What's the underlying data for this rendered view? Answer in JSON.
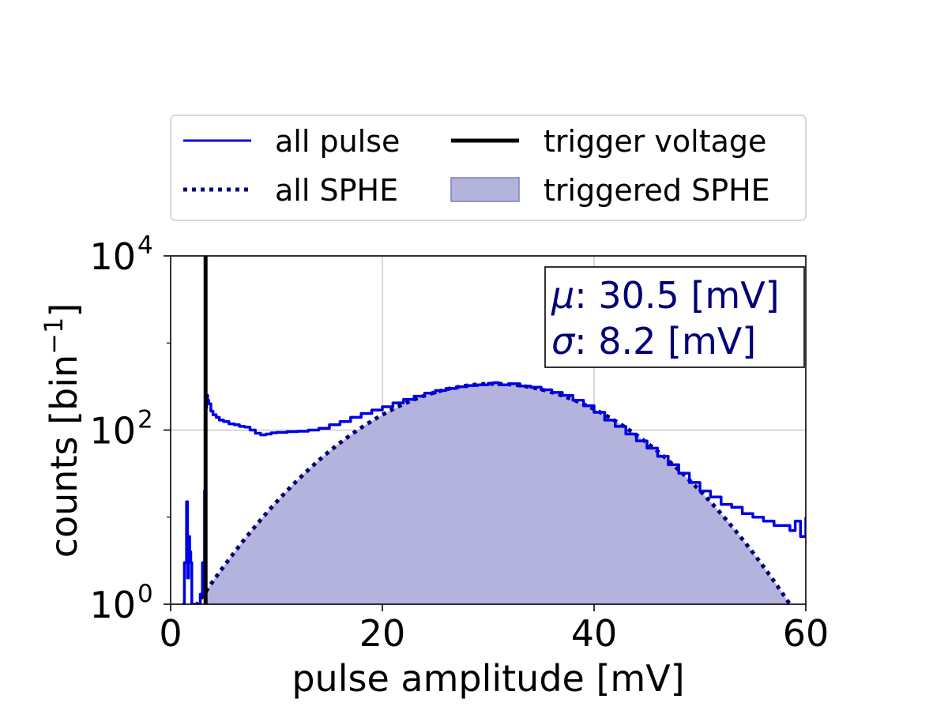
{
  "chart_data": {
    "type": "line",
    "xlabel": "pulse amplitude [mV]",
    "ylabel": "counts [bin",
    "ylabel_sup": "−1",
    "ylabel_close": "]",
    "xlim": [
      0,
      60
    ],
    "ylim": [
      1,
      10000
    ],
    "yscale": "log",
    "grid": true,
    "x_ticks": [
      0,
      20,
      40,
      60
    ],
    "x_tick_labels": [
      "0",
      "20",
      "40",
      "60"
    ],
    "y_ticks": [
      {
        "value": 1,
        "base": "10",
        "exp": "0"
      },
      {
        "value": 100,
        "base": "10",
        "exp": "2"
      },
      {
        "value": 10000,
        "base": "10",
        "exp": "4"
      }
    ],
    "legend": {
      "placement": "above plot",
      "entries": [
        {
          "label": "all pulse",
          "style": "solid",
          "color": "#0000e6"
        },
        {
          "label": "trigger voltage",
          "style": "solid-thick",
          "color": "#000000"
        },
        {
          "label": "all SPHE",
          "style": "dotted",
          "color": "#00007a"
        },
        {
          "label": "triggered SPHE",
          "style": "fill",
          "color": "#b3b3de"
        }
      ]
    },
    "annotation": {
      "mu_symbol": "μ",
      "mu_text": ": 30.5 [mV]",
      "sigma_symbol": "σ",
      "sigma_text": ": 8.2 [mV]",
      "color": "#00007a"
    },
    "trigger_voltage": 3.3,
    "sphe_gaussian": {
      "mu": 30.5,
      "sigma": 8.2,
      "peak": 340
    },
    "series": [
      {
        "name": "all pulse",
        "x": [
          1.1,
          1.3,
          1.5,
          1.6,
          1.7,
          1.8,
          1.9,
          2.0,
          2.1,
          2.2,
          2.4,
          2.6,
          2.8,
          3.0,
          3.2,
          3.3,
          3.4,
          3.5,
          3.6,
          3.8,
          4.0,
          4.3,
          4.6,
          5.0,
          5.5,
          6.0,
          6.5,
          7.0,
          7.5,
          8.0,
          8.5,
          9.0,
          9.5,
          10,
          11,
          12,
          13,
          14,
          15,
          16,
          17,
          18,
          19,
          20,
          21,
          22,
          23,
          24,
          25,
          26,
          27,
          28,
          29,
          30,
          30.5,
          31,
          32,
          33,
          34,
          35,
          36,
          37,
          38,
          39,
          40,
          41,
          42,
          43,
          44,
          45,
          46,
          47,
          48,
          49,
          50,
          51,
          52,
          53,
          54,
          55,
          56,
          57,
          58,
          58.5,
          59,
          59.5,
          60
        ],
        "y": [
          1,
          3,
          15,
          2,
          6,
          4,
          3,
          1,
          1,
          1,
          1,
          1,
          1.3,
          3,
          20,
          180,
          250,
          220,
          200,
          165,
          150,
          140,
          130,
          125,
          118,
          115,
          110,
          108,
          100,
          92,
          88,
          90,
          93,
          94,
          96,
          97,
          100,
          105,
          115,
          125,
          140,
          155,
          170,
          185,
          205,
          225,
          245,
          265,
          285,
          300,
          315,
          325,
          330,
          345,
          350,
          330,
          340,
          320,
          310,
          290,
          270,
          250,
          220,
          190,
          160,
          130,
          110,
          90,
          75,
          62,
          50,
          40,
          32,
          25,
          20,
          17,
          14,
          13,
          11,
          10,
          9,
          8,
          8,
          7,
          9,
          6,
          10
        ]
      }
    ]
  }
}
